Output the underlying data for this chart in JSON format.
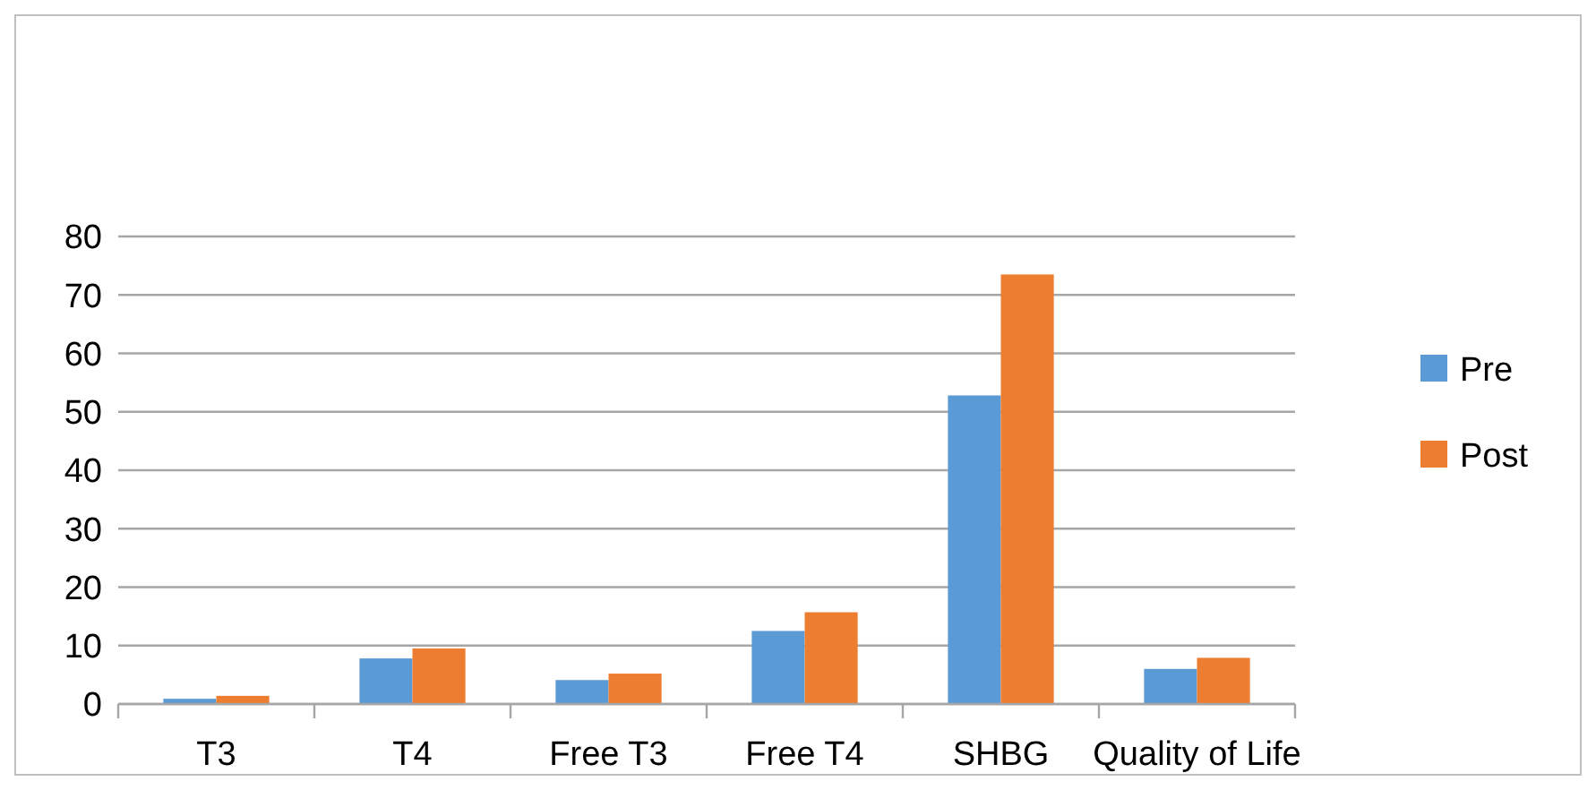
{
  "chart_data": {
    "type": "bar",
    "categories": [
      "T3",
      "T4",
      "Free T3",
      "Free T4",
      "SHBG",
      "Quality of Life"
    ],
    "series": [
      {
        "name": "Pre",
        "color": "#5b9bd5",
        "values": [
          0.9,
          7.8,
          4.1,
          12.5,
          52.8,
          6.0
        ]
      },
      {
        "name": "Post",
        "color": "#ed7d31",
        "values": [
          1.4,
          9.5,
          5.2,
          15.7,
          73.5,
          7.9
        ]
      }
    ],
    "ylim": [
      0,
      80
    ],
    "yticks": [
      0,
      10,
      20,
      30,
      40,
      50,
      60,
      70,
      80
    ],
    "grid": "y",
    "legend": "right"
  }
}
